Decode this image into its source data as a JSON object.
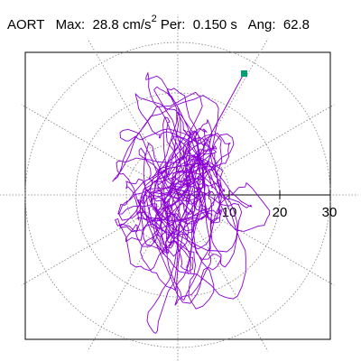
{
  "header": {
    "signal": "AORT",
    "max_label": "Max:",
    "max_value": "28.8",
    "max_unit": "cm/s",
    "max_unit_exp": "2",
    "per_label": "Per:",
    "per_value": "0.150 s",
    "ang_label": "Ang:",
    "ang_value": "62.8"
  },
  "axis_ticks": [
    "10",
    "20",
    "30"
  ],
  "colors": {
    "trace": "#8a00d4",
    "marker": "#009e73",
    "grid": "#808080"
  }
}
